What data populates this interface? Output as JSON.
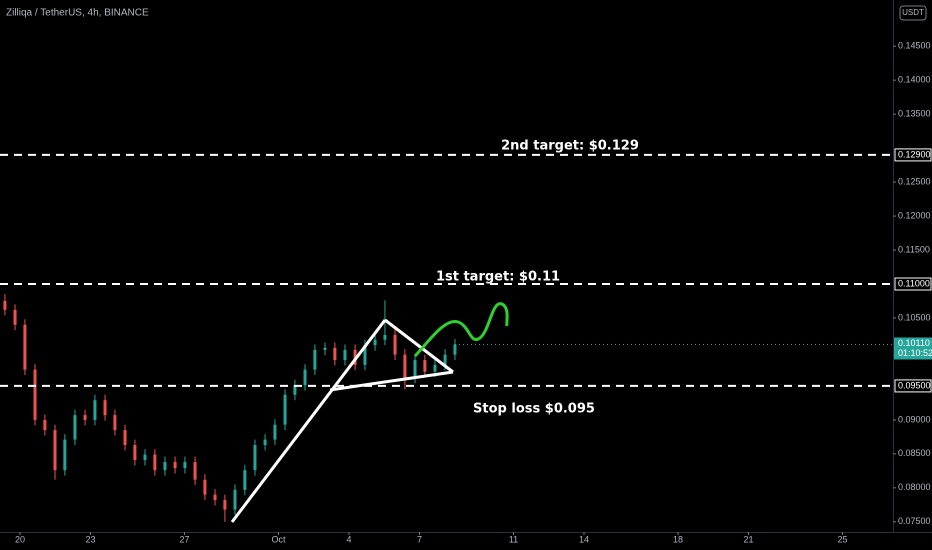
{
  "chart_data": {
    "type": "candlestick",
    "title": "Zilliqa / TetherUS, 4h, BINANCE",
    "currency": "USDT",
    "x": [
      -0.64,
      -0.21,
      0.21,
      0.64,
      1.06,
      1.49,
      1.91,
      2.34,
      2.77,
      3.19,
      3.62,
      4.04,
      4.47,
      4.89,
      5.32,
      5.74,
      6.17,
      6.6,
      7.02,
      7.45,
      7.87,
      8.3,
      8.72,
      9.15,
      9.57,
      10,
      10.43,
      10.85,
      11.28,
      11.7,
      12.13,
      12.55,
      12.98,
      13.4,
      13.83,
      14.26,
      14.68,
      15.11,
      15.53,
      15.96,
      16.38,
      16.81,
      17.23,
      17.66,
      18.09,
      18.51
    ],
    "open": [
      0.1075,
      0.1062,
      0.104,
      0.0974,
      0.09,
      0.0885,
      0.0826,
      0.0871,
      0.0907,
      0.09,
      0.0929,
      0.0907,
      0.0885,
      0.0863,
      0.0841,
      0.0849,
      0.0826,
      0.0838,
      0.0829,
      0.0838,
      0.0812,
      0.079,
      0.0782,
      0.0768,
      0.0797,
      0.0826,
      0.0863,
      0.0871,
      0.0893,
      0.0937,
      0.0951,
      0.0974,
      0.1003,
      0.1006,
      0.0988,
      0.1003,
      0.0981,
      0.101,
      0.1018,
      0.1025,
      0.0996,
      0.0962,
      0.0988,
      0.0971,
      0.0981,
      0.0996
    ],
    "high": [
      0.1085,
      0.107,
      0.1048,
      0.0982,
      0.0908,
      0.0893,
      0.0879,
      0.0915,
      0.0915,
      0.0937,
      0.0937,
      0.0915,
      0.0893,
      0.0871,
      0.0857,
      0.0857,
      0.0846,
      0.0846,
      0.0846,
      0.0846,
      0.082,
      0.0798,
      0.079,
      0.0805,
      0.0834,
      0.0871,
      0.0879,
      0.0901,
      0.0945,
      0.0959,
      0.0982,
      0.1011,
      0.1014,
      0.1014,
      0.1011,
      0.1011,
      0.1018,
      0.1026,
      0.1076,
      0.1033,
      0.1004,
      0.0996,
      0.0996,
      0.0989,
      0.1004,
      0.1019
    ],
    "low": [
      0.1054,
      0.1032,
      0.0966,
      0.0892,
      0.0877,
      0.0812,
      0.0818,
      0.0863,
      0.0892,
      0.0892,
      0.0899,
      0.0877,
      0.0855,
      0.0833,
      0.0833,
      0.0818,
      0.0818,
      0.0821,
      0.0821,
      0.0804,
      0.0782,
      0.0774,
      0.075,
      0.076,
      0.0789,
      0.0818,
      0.0855,
      0.0863,
      0.0885,
      0.0929,
      0.0943,
      0.0966,
      0.0995,
      0.098,
      0.098,
      0.0973,
      0.0973,
      0.1002,
      0.101,
      0.0988,
      0.0945,
      0.0954,
      0.0963,
      0.0963,
      0.0973,
      0.0988
    ],
    "close": [
      0.1062,
      0.104,
      0.0974,
      0.09,
      0.0885,
      0.0826,
      0.0871,
      0.0907,
      0.09,
      0.0929,
      0.0907,
      0.0885,
      0.0863,
      0.0841,
      0.0849,
      0.0826,
      0.0838,
      0.0829,
      0.0838,
      0.0812,
      0.079,
      0.0782,
      0.0768,
      0.0797,
      0.0826,
      0.0863,
      0.0871,
      0.0893,
      0.0937,
      0.0951,
      0.0974,
      0.1003,
      0.1006,
      0.0988,
      0.1003,
      0.0981,
      0.101,
      0.1018,
      0.1025,
      0.0996,
      0.0962,
      0.0988,
      0.0971,
      0.0981,
      0.0996,
      0.1011
    ],
    "up_color": "#26a69a",
    "down_color": "#ef5350",
    "xlim": [
      -0.85,
      37.15
    ],
    "xticks": [
      {
        "value": 0,
        "label": "20"
      },
      {
        "value": 3,
        "label": "23"
      },
      {
        "value": 7,
        "label": "27"
      },
      {
        "value": 11,
        "label": "Oct"
      },
      {
        "value": 14,
        "label": "4"
      },
      {
        "value": 17,
        "label": "7"
      },
      {
        "value": 21,
        "label": "11"
      },
      {
        "value": 24,
        "label": "14"
      },
      {
        "value": 28,
        "label": "18"
      },
      {
        "value": 31,
        "label": "21"
      },
      {
        "value": 35,
        "label": "25"
      }
    ],
    "ylim": [
      0.0735,
      0.1518
    ],
    "yticks": [
      {
        "value": 0.145,
        "label": "0.14500"
      },
      {
        "value": 0.14,
        "label": "0.14000"
      },
      {
        "value": 0.135,
        "label": "0.13500"
      },
      {
        "value": 0.125,
        "label": "0.12500"
      },
      {
        "value": 0.12,
        "label": "0.12000"
      },
      {
        "value": 0.115,
        "label": "0.11500"
      },
      {
        "value": 0.105,
        "label": "0.10500"
      },
      {
        "value": 0.09,
        "label": "0.09000"
      },
      {
        "value": 0.085,
        "label": "0.08500"
      },
      {
        "value": 0.08,
        "label": "0.08000"
      },
      {
        "value": 0.075,
        "label": "0.07500"
      }
    ],
    "levels": [
      {
        "value": 0.129,
        "label": "0.12900",
        "text": "2nd target: $0.129"
      },
      {
        "value": 0.11,
        "label": "0.11000",
        "text": "1st target: $0.11"
      },
      {
        "value": 0.095,
        "label": "0.09500",
        "text": "Stop loss $0.095"
      }
    ],
    "last_price": {
      "value": 0.1011,
      "label": "0.10110",
      "countdown": "01:10:52"
    }
  }
}
